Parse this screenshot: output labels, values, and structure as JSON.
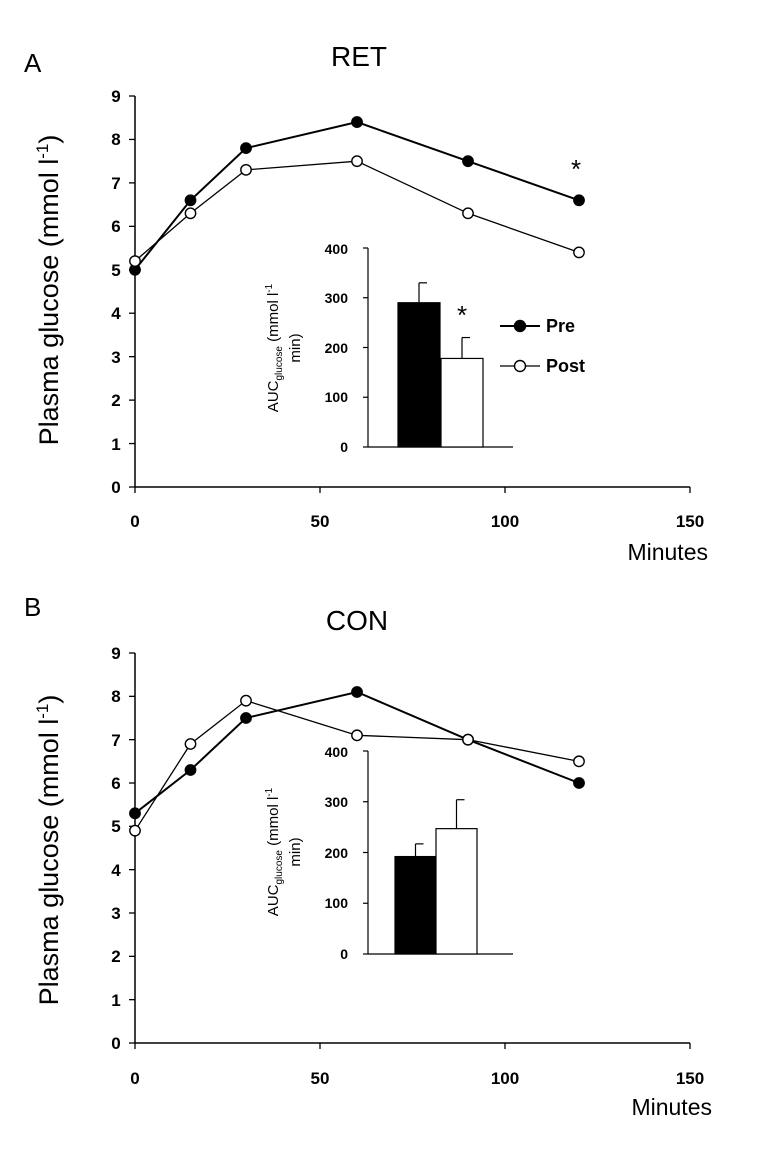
{
  "chart_data": [
    {
      "type": "line",
      "panel_label": "A",
      "title": "RET",
      "ylabel": "Plasma glucose (mmol l",
      "ylabel_sup": "-1",
      "ylabel_close": ")",
      "xlabel": "Minutes",
      "xlim": [
        0,
        150
      ],
      "ylim": [
        0,
        9
      ],
      "x_ticks": [
        "0",
        "50",
        "100",
        "150"
      ],
      "y_ticks": [
        "0",
        "1",
        "2",
        "3",
        "4",
        "5",
        "6",
        "7",
        "8",
        "9"
      ],
      "x": [
        0,
        15,
        30,
        60,
        90,
        120
      ],
      "series": [
        {
          "name": "Pre",
          "marker": "filled",
          "values": [
            5.0,
            6.6,
            7.8,
            8.4,
            7.5,
            6.6
          ]
        },
        {
          "name": "Post",
          "marker": "open",
          "values": [
            5.2,
            6.3,
            7.3,
            7.5,
            6.3,
            5.4
          ]
        }
      ],
      "annotation": "*",
      "legend": [
        "Pre",
        "Post"
      ],
      "inset": {
        "type": "bar",
        "ylabel": "AUC",
        "ylabel_sub": "glucose",
        "ylabel_rest": " (mmol l",
        "ylabel_sup": "-1",
        "ylabel_line2": "min)",
        "ylim": [
          0,
          400
        ],
        "y_ticks": [
          "0",
          "100",
          "200",
          "300",
          "400"
        ],
        "categories": [
          "Pre",
          "Post"
        ],
        "values": [
          290,
          178
        ],
        "errors": [
          40,
          42
        ],
        "annotation": "*"
      }
    },
    {
      "type": "line",
      "panel_label": "B",
      "title": "CON",
      "ylabel": "Plasma glucose (mmol l",
      "ylabel_sup": "-1",
      "ylabel_close": ")",
      "xlabel": "Minutes",
      "xlim": [
        0,
        150
      ],
      "ylim": [
        0,
        9
      ],
      "x_ticks": [
        "0",
        "50",
        "100",
        "150"
      ],
      "y_ticks": [
        "0",
        "1",
        "2",
        "3",
        "4",
        "5",
        "6",
        "7",
        "8",
        "9"
      ],
      "x": [
        0,
        15,
        30,
        60,
        90,
        120
      ],
      "series": [
        {
          "name": "Pre",
          "marker": "filled",
          "values": [
            5.3,
            6.3,
            7.5,
            8.1,
            7.0,
            6.0
          ]
        },
        {
          "name": "Post",
          "marker": "open",
          "values": [
            4.9,
            6.9,
            7.9,
            7.1,
            7.0,
            6.5
          ]
        }
      ],
      "inset": {
        "type": "bar",
        "ylabel": "AUC",
        "ylabel_sub": "glucose",
        "ylabel_rest": " (mmol l",
        "ylabel_sup": "-1",
        "ylabel_line2": "min)",
        "ylim": [
          0,
          400
        ],
        "y_ticks": [
          "0",
          "100",
          "200",
          "300",
          "400"
        ],
        "categories": [
          "Pre",
          "Post"
        ],
        "values": [
          192,
          247
        ],
        "errors": [
          25,
          57
        ]
      }
    }
  ]
}
